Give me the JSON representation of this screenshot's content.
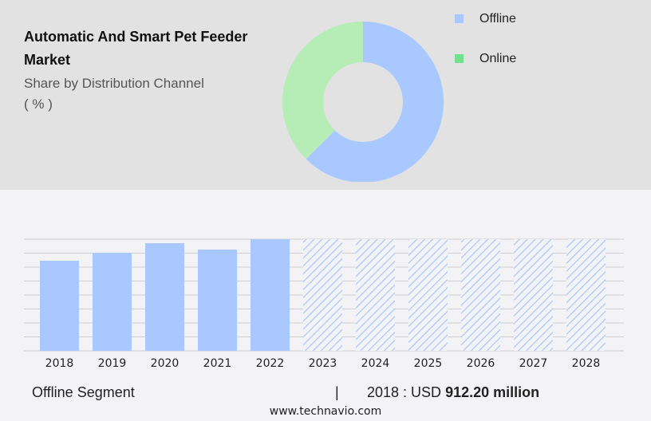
{
  "header": {
    "title": "Automatic And Smart Pet Feeder Market",
    "subtitle": "Share by Distribution Channel",
    "unit": "( % )"
  },
  "chart_data": [
    {
      "type": "pie",
      "variant": "donut",
      "categories": [
        "Offline",
        "Online"
      ],
      "values": [
        62.5,
        37.5
      ],
      "colors": [
        "#a8c8ff",
        "#b6edb6"
      ],
      "legend_colors": [
        "#a8c8ff",
        "#74e08f"
      ],
      "legend": "right"
    },
    {
      "type": "bar",
      "categories": [
        "2018",
        "2019",
        "2020",
        "2021",
        "2022",
        "2023",
        "2024",
        "2025",
        "2026",
        "2027",
        "2028"
      ],
      "values": [
        912.2,
        993,
        1090,
        1025,
        1130,
        null,
        null,
        null,
        null,
        null,
        null
      ],
      "forecast_from": "2023",
      "color": "#a8c8ff",
      "grid": true,
      "ylabel": "",
      "xlabel": ""
    }
  ],
  "footer": {
    "segment": "Offline Segment",
    "separator": "|",
    "value_prefix": "2018 : USD",
    "value": "912.20 million",
    "url": "www.technavio.com"
  }
}
